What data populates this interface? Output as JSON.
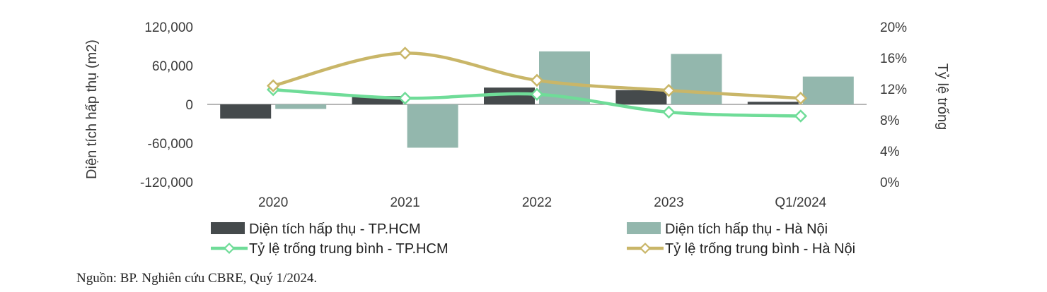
{
  "chart_data": {
    "type": "bar",
    "categories": [
      "2020",
      "2021",
      "2022",
      "2023",
      "Q1/2024"
    ],
    "ylabel": "Diện tích hấp thụ (m2)",
    "y2label": "Tỷ lệ trống",
    "ylim": [
      -120000,
      120000
    ],
    "y2lim": [
      0,
      20
    ],
    "yticks": [
      "120,000",
      "60,000",
      "0",
      "-60,000",
      "-120,000"
    ],
    "y2ticks": [
      "20%",
      "16%",
      "12%",
      "8%",
      "4%",
      "0%"
    ],
    "legend_position": "bottom",
    "grid": false,
    "series": [
      {
        "name": "Diện tích hấp thụ - TP.HCM",
        "kind": "bar",
        "axis": "left",
        "color": "#454a4c",
        "values": [
          -22000,
          13000,
          26000,
          22000,
          4000
        ]
      },
      {
        "name": "Diện tích hấp thụ - Hà Nội",
        "kind": "bar",
        "axis": "left",
        "color": "#93b7ad",
        "values": [
          -7000,
          -67000,
          82000,
          78000,
          43000
        ]
      },
      {
        "name": "Tỷ lệ trống trung bình - TP.HCM",
        "kind": "line",
        "axis": "right",
        "color": "#6fdc98",
        "values": [
          11.9,
          10.8,
          11.3,
          9.0,
          8.5
        ]
      },
      {
        "name": "Tỷ lệ trống trung bình - Hà Nội",
        "kind": "line",
        "axis": "right",
        "color": "#c9b668",
        "values": [
          12.4,
          16.6,
          13.1,
          11.8,
          10.8
        ]
      }
    ]
  },
  "source_note": "Nguồn: BP. Nghiên cứu CBRE, Quý 1/2024."
}
